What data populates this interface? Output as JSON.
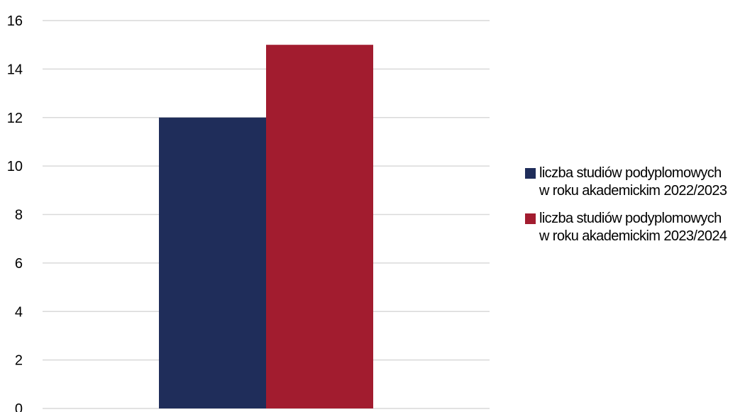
{
  "chart_data": {
    "type": "bar",
    "categories": [
      ""
    ],
    "series": [
      {
        "name_lines": [
          "liczba studiów podyplomowych",
          "w roku akademickim 2022/2023"
        ],
        "values": [
          12
        ],
        "color": "#1f2d5a"
      },
      {
        "name_lines": [
          "liczba studiów podyplomowych",
          "w roku akademickim 2023/2024"
        ],
        "values": [
          15
        ],
        "color": "#a21c2f"
      }
    ],
    "ylim": [
      0,
      16
    ],
    "yticks": [
      0,
      2,
      4,
      6,
      8,
      10,
      12,
      14,
      16
    ],
    "grid": true,
    "gridline_color": "#d9d9d9",
    "legend_position": "right"
  }
}
